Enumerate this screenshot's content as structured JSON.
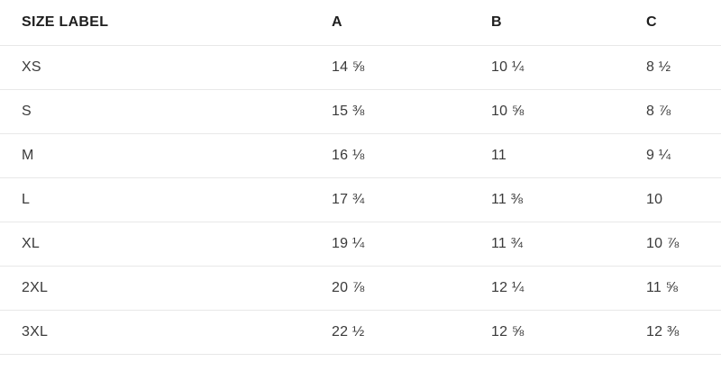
{
  "table": {
    "columns": [
      "SIZE LABEL",
      "A",
      "B",
      "C"
    ],
    "rows": [
      {
        "label": "XS",
        "a": "14 ⅝",
        "b": "10 ¼",
        "c": "8 ½"
      },
      {
        "label": "S",
        "a": "15 ⅜",
        "b": "10 ⅝",
        "c": "8 ⅞"
      },
      {
        "label": "M",
        "a": "16 ⅛",
        "b": "11",
        "c": "9 ¼"
      },
      {
        "label": "L",
        "a": "17 ¾",
        "b": "11 ⅜",
        "c": "10"
      },
      {
        "label": "XL",
        "a": "19 ¼",
        "b": "11 ¾",
        "c": "10 ⅞"
      },
      {
        "label": "2XL",
        "a": "20 ⅞",
        "b": "12 ¼",
        "c": "11 ⅝"
      },
      {
        "label": "3XL",
        "a": "22 ½",
        "b": "12 ⅝",
        "c": "12 ⅜"
      }
    ]
  }
}
